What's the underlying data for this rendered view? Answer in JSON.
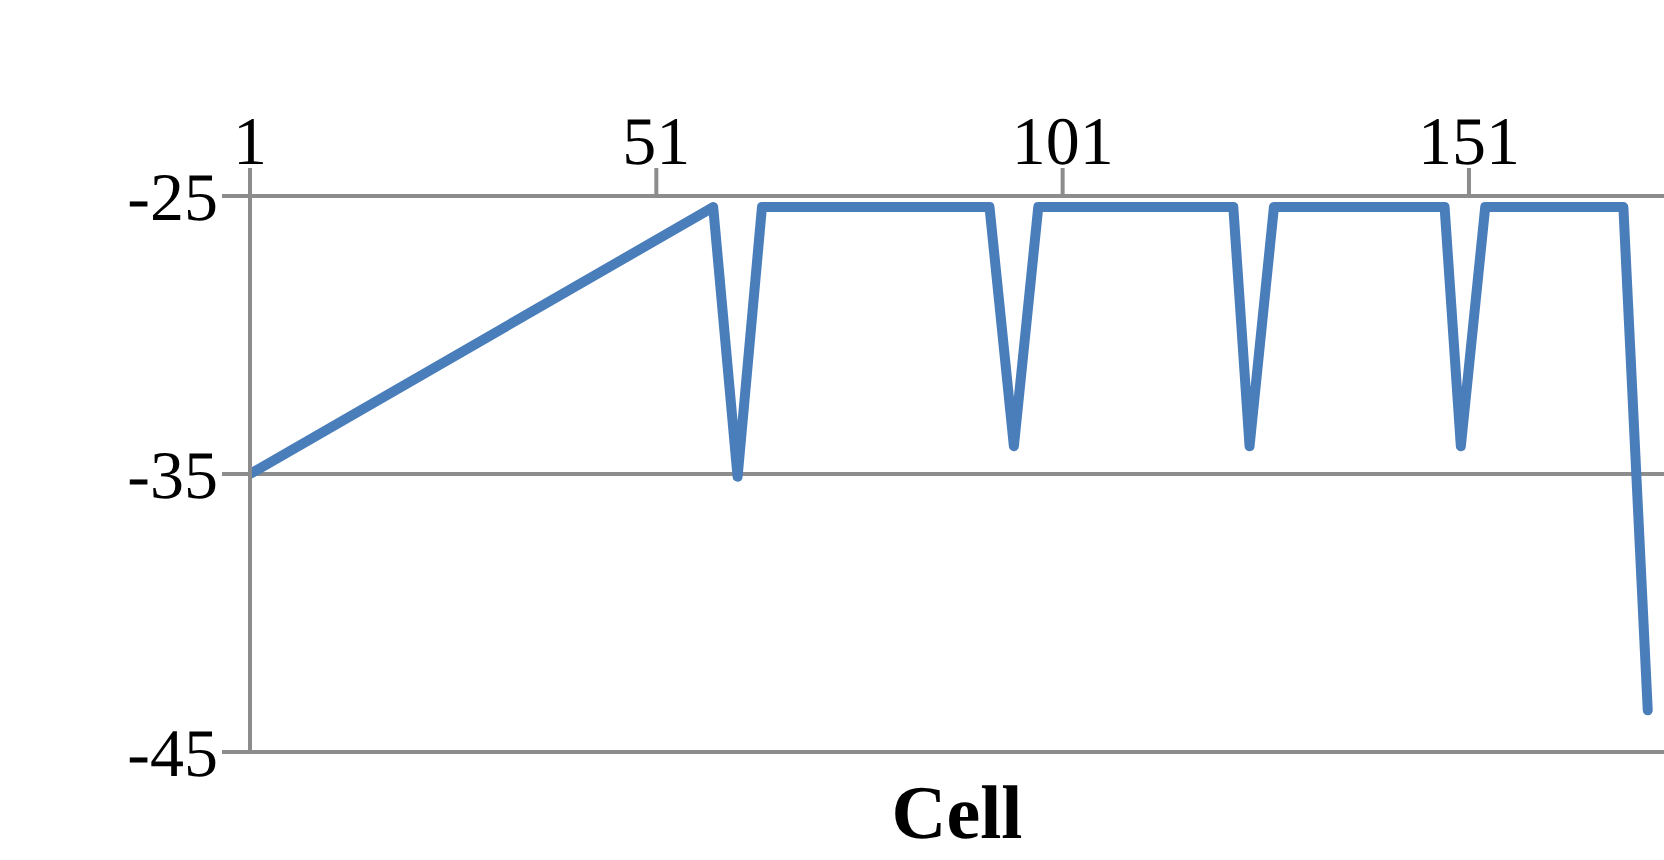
{
  "chart_data": {
    "type": "line",
    "xlabel": "Cell",
    "x": [
      1,
      58,
      61,
      64,
      92,
      95,
      98,
      122,
      124,
      127,
      148,
      150,
      153,
      170,
      173
    ],
    "values": [
      -35,
      -25.4,
      -35.1,
      -25.4,
      -25.4,
      -34,
      -25.4,
      -25.4,
      -34,
      -25.4,
      -25.4,
      -34,
      -25.4,
      -25.4,
      -43.5
    ],
    "color": "#4a7ebb",
    "xlim": [
      1,
      175
    ],
    "xticks": [
      1,
      51,
      101,
      151
    ],
    "ylim": [
      -45,
      -25
    ],
    "yticks": [
      -25,
      -35,
      -45
    ],
    "grid": "y",
    "marker": "none",
    "line_style": "solid"
  }
}
